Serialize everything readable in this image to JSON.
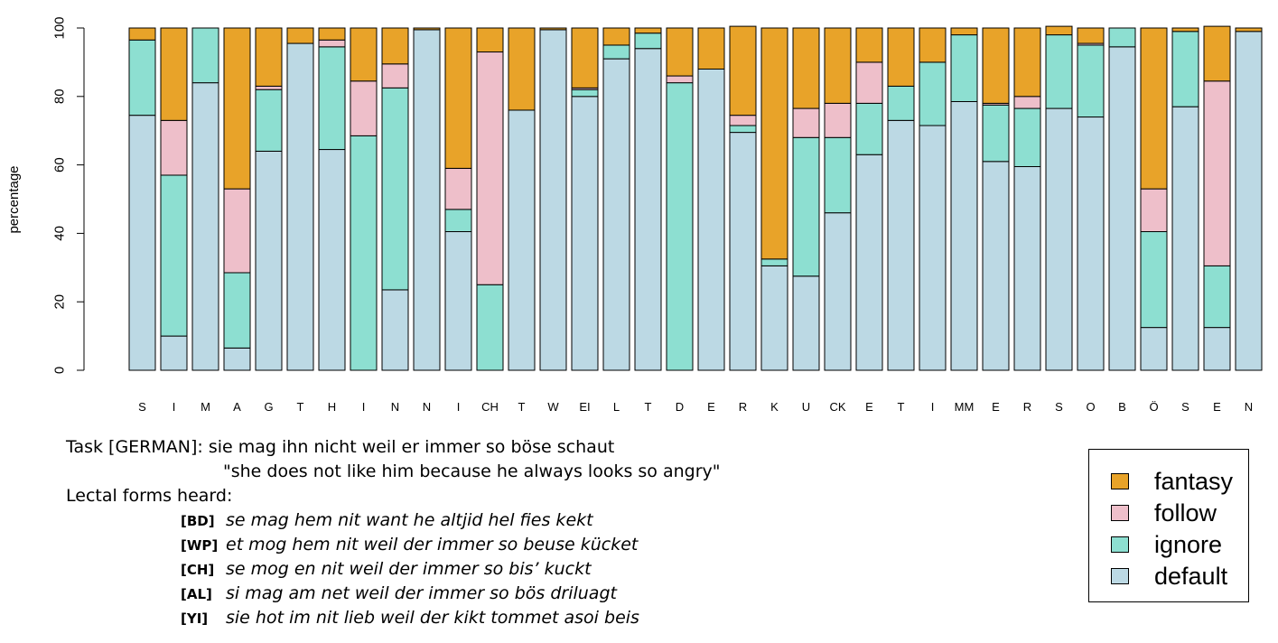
{
  "chart_data": {
    "type": "bar",
    "stacked": true,
    "ylabel": "percentage",
    "ylim": [
      0,
      100
    ],
    "yticks": [
      0,
      20,
      40,
      60,
      80,
      100
    ],
    "categories": [
      "S",
      "I",
      "M",
      "A",
      "G",
      "T",
      "H",
      "I",
      "N",
      "N",
      "I",
      "CH",
      "T",
      "W",
      "EI",
      "L",
      "T",
      "D",
      "E",
      "R",
      "K",
      "U",
      "CK",
      "E",
      "T",
      "I",
      "MM",
      "E",
      "R",
      "S",
      "O",
      "B",
      "Ö",
      "S",
      "E",
      "N"
    ],
    "series": [
      {
        "name": "default",
        "color": "#bcd9e4",
        "values": [
          74.5,
          10,
          84,
          6.5,
          64,
          95.5,
          64.5,
          0,
          23.5,
          99.5,
          40.5,
          0,
          76,
          99.5,
          80,
          91,
          94,
          0,
          88,
          69.5,
          30.5,
          27.5,
          46,
          63,
          73,
          71.5,
          78.5,
          61,
          59.5,
          76.5,
          74,
          94.5,
          12.5,
          77,
          12.5,
          99
        ]
      },
      {
        "name": "ignore",
        "color": "#8ddfd1",
        "values": [
          22,
          47,
          16,
          22,
          18,
          0,
          30,
          68.5,
          59,
          0,
          6.5,
          25,
          0,
          0,
          2,
          4,
          4.5,
          84,
          0,
          2,
          2,
          40.5,
          22,
          15,
          10,
          18.5,
          19.5,
          16.5,
          17,
          21.5,
          21,
          5.5,
          28,
          22,
          18,
          0
        ]
      },
      {
        "name": "follow",
        "color": "#eebfca",
        "values": [
          0,
          16,
          0,
          24.5,
          1,
          0,
          2,
          16,
          7,
          0,
          12,
          68,
          0,
          0,
          0.5,
          0,
          0,
          2,
          0,
          3,
          0,
          8.5,
          10,
          12,
          0,
          0,
          0,
          0.5,
          3.5,
          0,
          0.5,
          0,
          12.5,
          0,
          54,
          0
        ]
      },
      {
        "name": "fantasy",
        "color": "#e8a329",
        "values": [
          3.5,
          27,
          0,
          47,
          17,
          4.5,
          3.5,
          15.5,
          10.5,
          0.5,
          41,
          7,
          24,
          0.5,
          17.5,
          5,
          1.5,
          14,
          12,
          26,
          67.5,
          23.5,
          22,
          10,
          17,
          10,
          2,
          22,
          20,
          2.5,
          4.5,
          0,
          47,
          1,
          16,
          1
        ]
      }
    ],
    "legend_order": [
      "fantasy",
      "follow",
      "ignore",
      "default"
    ],
    "legend_position": "bottom-right",
    "grid": false
  },
  "task": {
    "label": "Task [GERMAN]: sie mag ihn nicht weil er immer so böse schaut",
    "translation": "\"she does not like him because he always looks so angry\""
  },
  "lectal": {
    "heading": "Lectal forms heard:",
    "rows": [
      {
        "code": "[BD]",
        "text": "se mag hem nit want he altjid hel fies kekt"
      },
      {
        "code": "[WP]",
        "text": "et mog hem nit weil der immer so beuse kücket"
      },
      {
        "code": "[CH]",
        "text": "se mog en nit weil der immer so bis’ kuckt"
      },
      {
        "code": "[AL]",
        "text": "si mag am net weil der immer so bös driluagt"
      },
      {
        "code": "[YI]",
        "text": "sie hot im nit lieb weil der kikt tommet asoi beis"
      }
    ]
  }
}
